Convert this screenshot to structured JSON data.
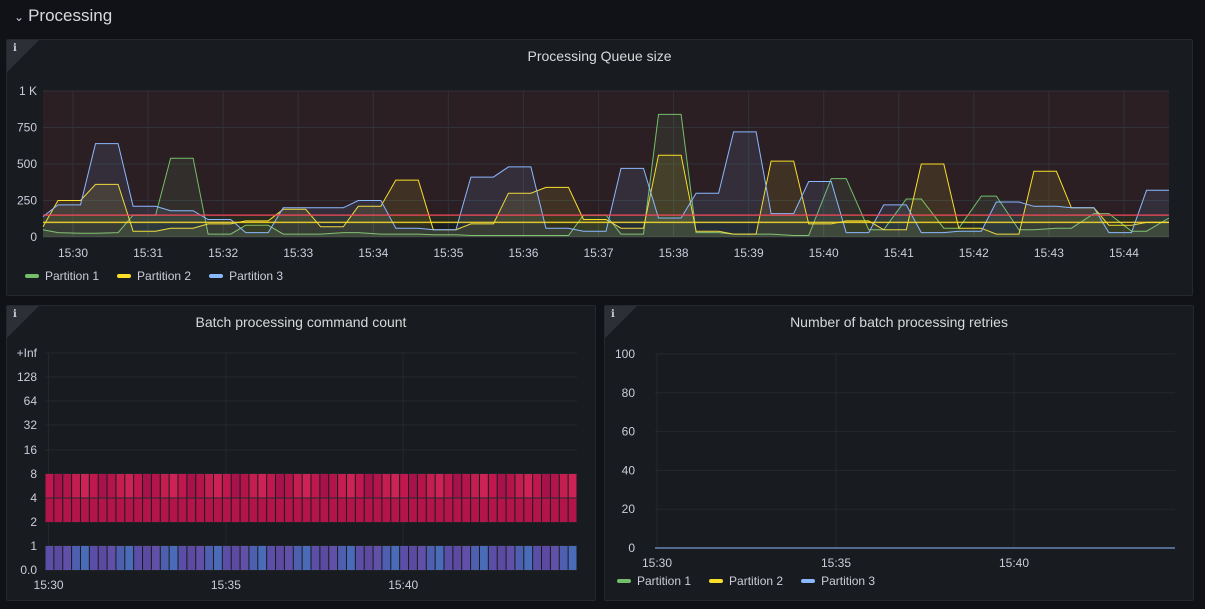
{
  "row": {
    "title": "Processing",
    "chevron": "chevron-down-icon"
  },
  "panels": {
    "queue": {
      "title": "Processing Queue size",
      "info_icon": "i",
      "legend": [
        {
          "name": "Partition 1",
          "color": "#73bf69"
        },
        {
          "name": "Partition 2",
          "color": "#fade2a"
        },
        {
          "name": "Partition 3",
          "color": "#8ab8ff"
        }
      ]
    },
    "heatmap": {
      "title": "Batch processing command count",
      "info_icon": "i"
    },
    "retries": {
      "title": "Number of batch processing retries",
      "info_icon": "i",
      "legend": [
        {
          "name": "Partition 1",
          "color": "#73bf69"
        },
        {
          "name": "Partition 2",
          "color": "#fade2a"
        },
        {
          "name": "Partition 3",
          "color": "#8ab8ff"
        }
      ]
    }
  },
  "chart_data": [
    {
      "type": "line",
      "title": "Processing Queue size",
      "x_tick_labels": [
        "15:30",
        "15:31",
        "15:32",
        "15:33",
        "15:34",
        "15:35",
        "15:36",
        "15:37",
        "15:38",
        "15:39",
        "15:40",
        "15:41",
        "15:42",
        "15:43",
        "15:44"
      ],
      "y_tick_labels": [
        "0",
        "250",
        "500",
        "750",
        "1 K"
      ],
      "ylim": [
        0,
        1000
      ],
      "thresholds": [
        {
          "value": 100,
          "color": "#fade2a"
        },
        {
          "value": 150,
          "color": "#f2495c"
        }
      ],
      "x": [
        "15:29.6",
        "15:29.8",
        "15:30.1",
        "15:30.3",
        "15:30.6",
        "15:30.8",
        "15:31.1",
        "15:31.3",
        "15:31.6",
        "15:31.8",
        "15:32.1",
        "15:32.3",
        "15:32.6",
        "15:32.8",
        "15:33.1",
        "15:33.3",
        "15:33.6",
        "15:33.8",
        "15:34.1",
        "15:34.3",
        "15:34.6",
        "15:34.8",
        "15:35.1",
        "15:35.3",
        "15:35.6",
        "15:35.8",
        "15:36.1",
        "15:36.3",
        "15:36.6",
        "15:36.8",
        "15:37.1",
        "15:37.3",
        "15:37.6",
        "15:37.8",
        "15:38.1",
        "15:38.3",
        "15:38.6",
        "15:38.8",
        "15:39.1",
        "15:39.3",
        "15:39.6",
        "15:39.8",
        "15:40.1",
        "15:40.3",
        "15:40.6",
        "15:40.8",
        "15:41.1",
        "15:41.3",
        "15:41.6",
        "15:41.8",
        "15:42.1",
        "15:42.3",
        "15:42.6",
        "15:42.8",
        "15:43.1",
        "15:43.3",
        "15:43.6",
        "15:43.8",
        "15:44.1",
        "15:44.3",
        "15:44.6"
      ],
      "series": [
        {
          "name": "Partition 1",
          "color": "#73bf69",
          "values": [
            50,
            30,
            25,
            25,
            30,
            150,
            150,
            540,
            540,
            20,
            20,
            80,
            80,
            20,
            20,
            20,
            30,
            30,
            20,
            20,
            20,
            15,
            15,
            10,
            10,
            10,
            10,
            10,
            10,
            150,
            150,
            20,
            20,
            840,
            840,
            30,
            30,
            20,
            20,
            20,
            10,
            10,
            400,
            400,
            50,
            50,
            260,
            260,
            60,
            60,
            280,
            280,
            50,
            50,
            60,
            60,
            160,
            160,
            40,
            40,
            130
          ]
        },
        {
          "name": "Partition 2",
          "color": "#fade2a",
          "values": [
            70,
            250,
            250,
            360,
            360,
            40,
            40,
            60,
            60,
            90,
            90,
            110,
            110,
            190,
            190,
            70,
            70,
            210,
            210,
            390,
            390,
            50,
            50,
            90,
            90,
            300,
            300,
            340,
            340,
            120,
            120,
            60,
            60,
            560,
            560,
            40,
            40,
            20,
            20,
            520,
            520,
            90,
            90,
            110,
            110,
            50,
            50,
            500,
            500,
            60,
            60,
            20,
            20,
            450,
            450,
            200,
            200,
            80,
            80,
            100,
            100
          ]
        },
        {
          "name": "Partition 3",
          "color": "#8ab8ff",
          "values": [
            140,
            220,
            220,
            640,
            640,
            210,
            210,
            180,
            180,
            120,
            120,
            30,
            30,
            200,
            200,
            200,
            200,
            250,
            250,
            60,
            60,
            50,
            50,
            410,
            410,
            480,
            480,
            60,
            60,
            40,
            40,
            470,
            470,
            130,
            130,
            300,
            300,
            720,
            720,
            160,
            160,
            380,
            380,
            30,
            30,
            220,
            220,
            30,
            30,
            40,
            40,
            240,
            240,
            210,
            210,
            200,
            200,
            30,
            30,
            320,
            320
          ]
        }
      ]
    },
    {
      "type": "heatmap",
      "title": "Batch processing command count",
      "x_tick_labels": [
        "15:30",
        "15:35",
        "15:40"
      ],
      "y_tick_labels": [
        "0.0",
        "1",
        "2",
        "4",
        "8",
        "16",
        "32",
        "64",
        "128",
        "+Inf"
      ],
      "columns": 60,
      "buckets": [
        {
          "range": "0.0–1",
          "color": "#5a4ea6"
        },
        {
          "range": "2–8",
          "color": "#c0184e"
        }
      ]
    },
    {
      "type": "line",
      "title": "Number of batch processing retries",
      "x_tick_labels": [
        "15:30",
        "15:35",
        "15:40"
      ],
      "y_tick_labels": [
        "0",
        "20",
        "40",
        "60",
        "80",
        "100"
      ],
      "ylim": [
        0,
        100
      ],
      "series": [
        {
          "name": "Partition 1",
          "values": [
            0,
            0
          ]
        },
        {
          "name": "Partition 2",
          "values": [
            0,
            0
          ]
        },
        {
          "name": "Partition 3",
          "values": [
            0,
            0
          ]
        }
      ]
    }
  ]
}
